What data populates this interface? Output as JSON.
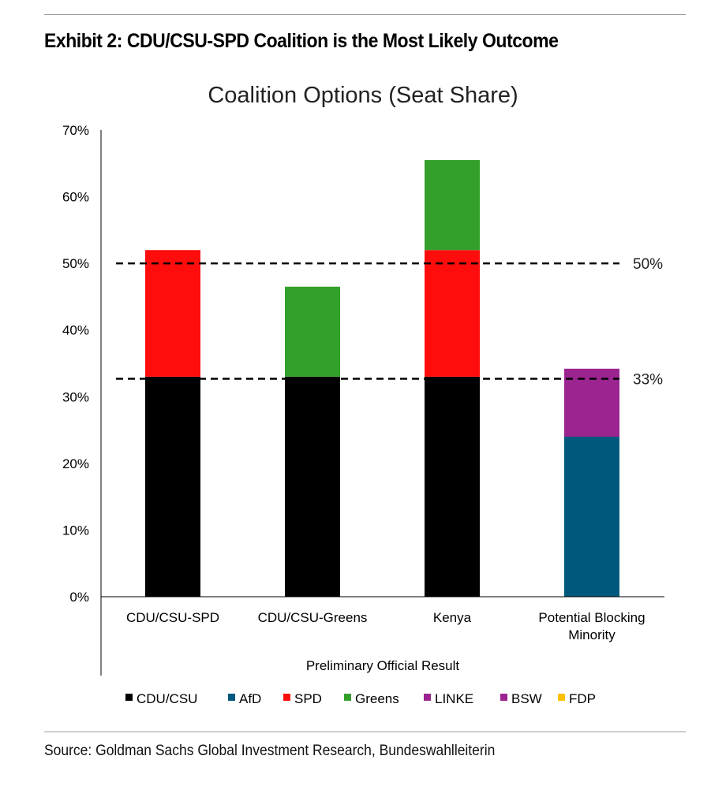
{
  "exhibit_title": "Exhibit 2: CDU/CSU-SPD Coalition is the Most Likely Outcome",
  "source": "Source: Goldman Sachs Global Investment Research, Bundeswahlleiterin",
  "chart_data": {
    "type": "bar",
    "stacked": true,
    "title": "Coalition Options (Seat Share)",
    "xlabel": "Preliminary Official Result",
    "ylabel": "",
    "ylim": [
      0,
      70
    ],
    "ytick_labels": [
      "0%",
      "10%",
      "20%",
      "30%",
      "40%",
      "50%",
      "60%",
      "70%"
    ],
    "categories": [
      "CDU/CSU-SPD",
      "CDU/CSU-Greens",
      "Kenya",
      "Potential Blocking Minority"
    ],
    "series": [
      {
        "name": "CDU/CSU",
        "color": "#000000",
        "values": [
          33,
          33,
          33,
          0
        ]
      },
      {
        "name": "AfD",
        "color": "#00587c",
        "values": [
          0,
          0,
          0,
          24
        ]
      },
      {
        "name": "SPD",
        "color": "#ff0d0d",
        "values": [
          19,
          0,
          19,
          0
        ]
      },
      {
        "name": "Greens",
        "color": "#33a02c",
        "values": [
          0,
          13.5,
          13.5,
          0
        ]
      },
      {
        "name": "LINKE",
        "color": "#9b2491",
        "values": [
          0,
          0,
          0,
          10.2
        ]
      },
      {
        "name": "BSW",
        "color": "#9b2491",
        "values": [
          0,
          0,
          0,
          0
        ]
      },
      {
        "name": "FDP",
        "color": "#ffc000",
        "values": [
          0,
          0,
          0,
          0
        ]
      }
    ],
    "reference_lines": [
      {
        "value": 50,
        "label": "50%"
      },
      {
        "value": 32.7,
        "label": "33%"
      }
    ],
    "legend_position": "bottom",
    "grid": false
  }
}
